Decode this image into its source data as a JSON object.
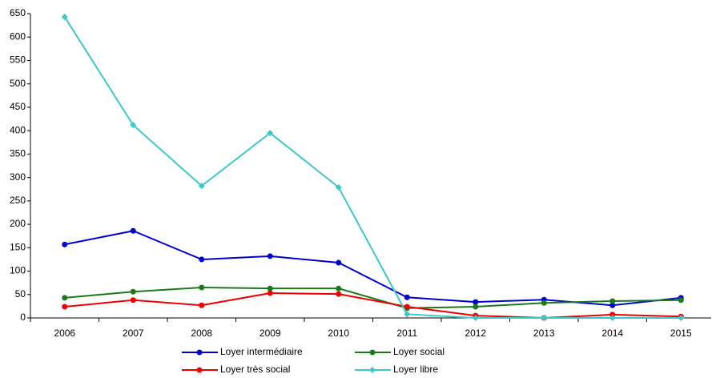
{
  "chart_data": {
    "type": "line",
    "categories": [
      "2006",
      "2007",
      "2008",
      "2009",
      "2010",
      "2011",
      "2012",
      "2013",
      "2014",
      "2015"
    ],
    "series": [
      {
        "name": "Loyer intermédiaire",
        "color": "#0000cc",
        "marker": "circle",
        "values": [
          157,
          186,
          125,
          132,
          118,
          44,
          34,
          39,
          27,
          43
        ]
      },
      {
        "name": "Loyer social",
        "color": "#1a7a1a",
        "marker": "circle",
        "values": [
          43,
          56,
          65,
          63,
          63,
          21,
          24,
          32,
          36,
          38
        ]
      },
      {
        "name": "Loyer très social",
        "color": "#ee0000",
        "marker": "circle",
        "values": [
          24,
          38,
          27,
          53,
          51,
          24,
          5,
          0,
          7,
          3
        ]
      },
      {
        "name": "Loyer libre",
        "color": "#3cc8c8",
        "marker": "diamond",
        "values": [
          643,
          412,
          282,
          395,
          279,
          8,
          0,
          0,
          0,
          0
        ]
      }
    ],
    "ylim": [
      0,
      650
    ],
    "yticks": [
      0,
      50,
      100,
      150,
      200,
      250,
      300,
      350,
      400,
      450,
      500,
      550,
      600,
      650
    ],
    "grid": false
  }
}
